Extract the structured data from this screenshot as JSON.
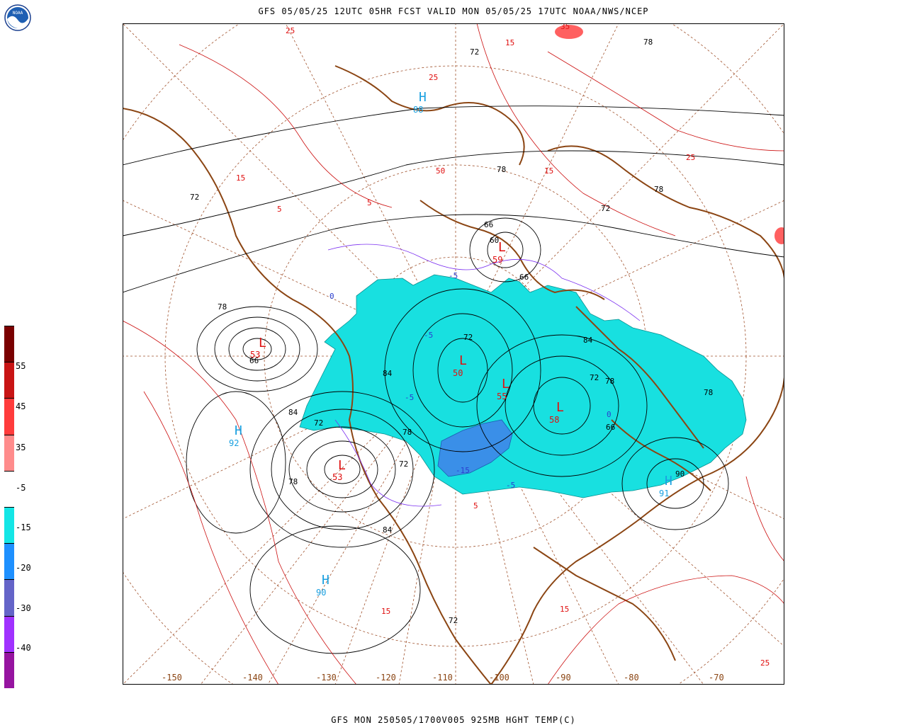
{
  "header": {
    "title": "GFS 05/05/25 12UTC 05HR FCST VALID MON 05/05/25 17UTC NOAA/NWS/NCEP"
  },
  "footer": {
    "title": "GFS MON 250505/1700V005 925MB HGHT TEMP(C)"
  },
  "logo": {
    "text": "NOAA",
    "icon": "noaa-logo-icon"
  },
  "colorbar": {
    "colors": [
      "#7a0000",
      "#c81414",
      "#ff3c3c",
      "#ff8c8c",
      "#ffffff",
      "#14e6e6",
      "#1e90ff",
      "#6464c8",
      "#a032ff",
      "#9614a0"
    ],
    "labels": [
      "55",
      "45",
      "35",
      "-5",
      "-15",
      "-20",
      "-30",
      "-40"
    ]
  },
  "longitude_labels": [
    "-150",
    "-140",
    "-130",
    "-120",
    "-110",
    "-100",
    "-90",
    "-80",
    "-70"
  ],
  "pressure_centers": [
    {
      "type": "L",
      "value": "53",
      "color": "#e01010"
    },
    {
      "type": "L",
      "value": "53",
      "color": "#e01010"
    },
    {
      "type": "L",
      "value": "50",
      "color": "#e01010"
    },
    {
      "type": "L",
      "value": "59",
      "color": "#e01010"
    },
    {
      "type": "L",
      "value": "55",
      "color": "#e01010"
    },
    {
      "type": "L",
      "value": "58",
      "color": "#e01010"
    },
    {
      "type": "H",
      "value": "92",
      "color": "#1aa0e0"
    },
    {
      "type": "H",
      "value": "90",
      "color": "#1aa0e0"
    },
    {
      "type": "H",
      "value": "91",
      "color": "#1aa0e0"
    },
    {
      "type": "H",
      "value": "88",
      "color": "#1aa0e0"
    }
  ],
  "height_labels": [
    "72",
    "78",
    "84",
    "66",
    "60",
    "90",
    "72",
    "78",
    "84",
    "66",
    "72",
    "78",
    "72",
    "84",
    "78",
    "66",
    "72",
    "78",
    "84",
    "72",
    "78",
    "78",
    "72",
    "78",
    "66",
    "72"
  ],
  "temperature_labels": [
    "25",
    "15",
    "5",
    "25",
    "15",
    "5",
    "15",
    "25",
    "15",
    "5",
    "15",
    "25",
    "50",
    "35"
  ],
  "cold_temp_labels": [
    "0",
    "-5",
    "-5",
    "-5",
    "-15",
    "0",
    "-5"
  ]
}
